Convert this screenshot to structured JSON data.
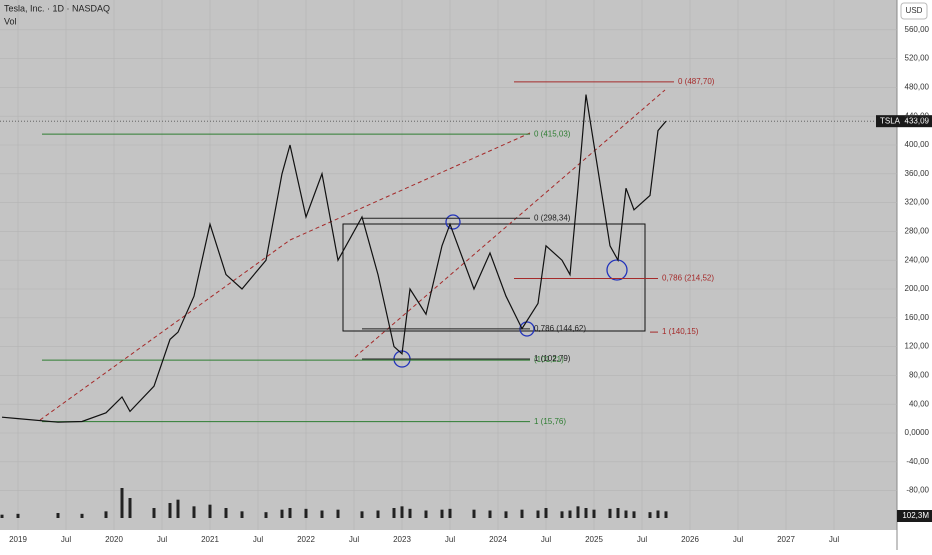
{
  "chart_data": {
    "type": "line",
    "title": "Tesla, Inc. · 1D · NASDAQ",
    "subtitle": "Vol",
    "currency": "USD",
    "symbol": "TSLA",
    "last_price": {
      "value": 433.09,
      "label": "433,09"
    },
    "last_volume": "102,3M",
    "color": "#111111",
    "x": [
      "2018-11",
      "2019-01",
      "2019-06",
      "2019-09",
      "2019-12",
      "2020-02",
      "2020-03",
      "2020-06",
      "2020-08",
      "2020-09",
      "2020-11",
      "2021-01",
      "2021-03",
      "2021-05",
      "2021-08",
      "2021-10",
      "2021-11",
      "2022-01",
      "2022-03",
      "2022-05",
      "2022-08",
      "2022-10",
      "2022-12",
      "2023-01",
      "2023-02",
      "2023-04",
      "2023-06",
      "2023-07",
      "2023-10",
      "2023-12",
      "2024-02",
      "2024-04",
      "2024-06",
      "2024-07",
      "2024-09",
      "2024-10",
      "2024-11",
      "2024-12",
      "2025-01",
      "2025-03",
      "2025-04",
      "2025-05",
      "2025-06",
      "2025-08",
      "2025-09",
      "2025-10"
    ],
    "values": [
      22,
      20,
      15,
      16,
      28,
      50,
      30,
      65,
      130,
      140,
      190,
      290,
      220,
      200,
      240,
      360,
      400,
      300,
      360,
      240,
      300,
      220,
      120,
      110,
      200,
      165,
      260,
      290,
      200,
      250,
      190,
      145,
      180,
      260,
      240,
      220,
      340,
      470,
      400,
      260,
      240,
      340,
      310,
      330,
      420,
      433
    ],
    "volume": [
      20,
      25,
      30,
      25,
      40,
      180,
      120,
      60,
      90,
      110,
      70,
      80,
      60,
      40,
      35,
      50,
      60,
      55,
      45,
      50,
      40,
      45,
      60,
      70,
      55,
      45,
      50,
      55,
      50,
      45,
      40,
      50,
      45,
      60,
      40,
      45,
      70,
      60,
      50,
      55,
      60,
      45,
      40,
      35,
      45,
      40
    ],
    "vol_ylim": [
      0,
      600
    ],
    "xlim": [
      "2018-11",
      "2028-03"
    ],
    "xticks": [
      {
        "value": "2019-01",
        "label": "2019"
      },
      {
        "value": "2019-07",
        "label": "Jul"
      },
      {
        "value": "2020-01",
        "label": "2020"
      },
      {
        "value": "2020-07",
        "label": "Jul"
      },
      {
        "value": "2021-01",
        "label": "2021"
      },
      {
        "value": "2021-07",
        "label": "Jul"
      },
      {
        "value": "2022-01",
        "label": "2022"
      },
      {
        "value": "2022-07",
        "label": "Jul"
      },
      {
        "value": "2023-01",
        "label": "2023"
      },
      {
        "value": "2023-07",
        "label": "Jul"
      },
      {
        "value": "2024-01",
        "label": "2024"
      },
      {
        "value": "2024-07",
        "label": "Jul"
      },
      {
        "value": "2025-01",
        "label": "2025"
      },
      {
        "value": "2025-07",
        "label": "Jul"
      },
      {
        "value": "2026-01",
        "label": "2026"
      },
      {
        "value": "2026-07",
        "label": "Jul"
      },
      {
        "value": "2027-01",
        "label": "2027"
      },
      {
        "value": "2027-07",
        "label": "Jul"
      }
    ],
    "ylim": [
      -120,
      600
    ],
    "yticks": [
      {
        "value": -80,
        "label": "-80,00"
      },
      {
        "value": -40,
        "label": "-40,00"
      },
      {
        "value": 0,
        "label": "0,0000"
      },
      {
        "value": 40,
        "label": "40,00"
      },
      {
        "value": 80,
        "label": "80,00"
      },
      {
        "value": 120,
        "label": "120,00"
      },
      {
        "value": 160,
        "label": "160,00"
      },
      {
        "value": 200,
        "label": "200,00"
      },
      {
        "value": 240,
        "label": "240,00"
      },
      {
        "value": 280,
        "label": "280,00"
      },
      {
        "value": 320,
        "label": "320,00"
      },
      {
        "value": 360,
        "label": "360,00"
      },
      {
        "value": 400,
        "label": "400,00"
      },
      {
        "value": 440,
        "label": "440,00"
      },
      {
        "value": 480,
        "label": "480,00"
      },
      {
        "value": 520,
        "label": "520,00"
      },
      {
        "value": 560,
        "label": "560,00"
      }
    ],
    "grid": true,
    "annotations": [
      {
        "label": "0 (415,03)",
        "value": 415.03,
        "color": "#2e7d32",
        "from": "2019-04",
        "to": "2024-05"
      },
      {
        "label": "1 (15,76)",
        "value": 15.76,
        "color": "#2e7d32",
        "from": "2019-04",
        "to": "2024-05"
      },
      {
        "label": "(101,21)",
        "value": 101.21,
        "color": "#2e7d32",
        "from": "2019-04",
        "to": "2024-05"
      },
      {
        "label": "1 (102,79)",
        "value": 102.79,
        "color": "#222222",
        "from": "2022-08",
        "to": "2024-05"
      },
      {
        "label": "0 (298,34)",
        "value": 298.34,
        "color": "#222222",
        "from": "2022-08",
        "to": "2024-05"
      },
      {
        "label": "0,786 (144,62)",
        "value": 144.62,
        "color": "#222222",
        "from": "2022-08",
        "to": "2024-05"
      },
      {
        "label": "0 (487,70)",
        "value": 487.7,
        "color": "#a52a2a",
        "from": "2024-03",
        "to": "2025-11"
      },
      {
        "label": "0,786 (214,52)",
        "value": 214.52,
        "color": "#a52a2a",
        "from": "2024-03",
        "to": "2025-09"
      },
      {
        "label": "1 (140,15)",
        "value": 140.15,
        "color": "#a52a2a",
        "from": "2025-08",
        "to": "2025-09"
      }
    ]
  }
}
